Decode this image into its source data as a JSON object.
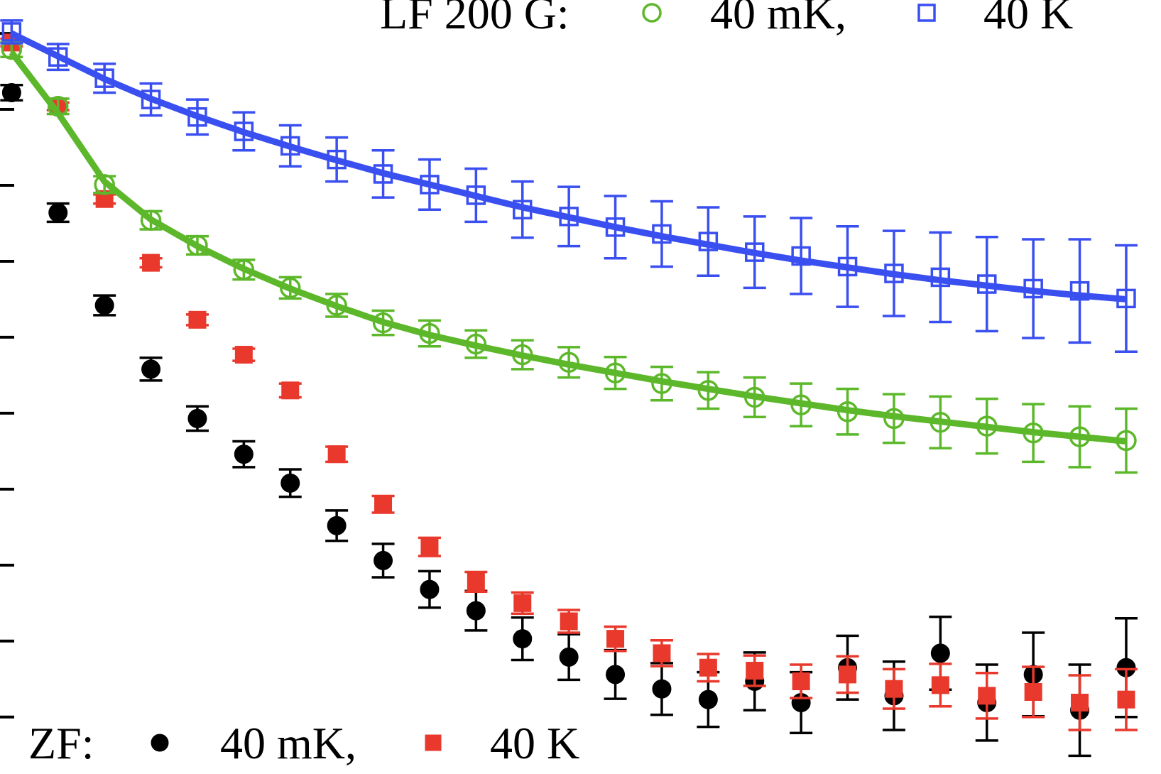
{
  "chart_data": {
    "type": "scatter",
    "xlim": [
      0,
      100
    ],
    "ylim": [
      -0.75,
      9.44
    ],
    "yticks": [
      0,
      1,
      2,
      3,
      4,
      5,
      6,
      7,
      8,
      9
    ],
    "x": [
      1,
      5,
      9,
      13,
      17,
      21,
      25,
      29,
      33,
      37,
      41,
      45,
      49,
      53,
      57,
      61,
      65,
      69,
      73,
      77,
      81,
      85,
      89,
      93,
      97
    ],
    "legend_groups": [
      {
        "label": "LF 200 G:",
        "series": [
          2,
          3
        ],
        "position": "top"
      },
      {
        "label": "ZF:",
        "series": [
          0,
          1
        ],
        "position": "bottom"
      }
    ],
    "series": [
      {
        "name": "40 mK,",
        "color": "#000000",
        "marker": "circle",
        "filled": true,
        "values": [
          8.22,
          6.64,
          5.42,
          4.58,
          3.93,
          3.46,
          3.08,
          2.52,
          2.06,
          1.68,
          1.4,
          1.03,
          0.79,
          0.56,
          0.37,
          0.23,
          0.47,
          0.19,
          0.65,
          0.28,
          0.84,
          0.19,
          0.56,
          0.09,
          0.65
        ],
        "errors": [
          0.1,
          0.12,
          0.13,
          0.15,
          0.16,
          0.17,
          0.18,
          0.2,
          0.22,
          0.24,
          0.26,
          0.28,
          0.3,
          0.32,
          0.34,
          0.36,
          0.38,
          0.4,
          0.42,
          0.45,
          0.48,
          0.5,
          0.55,
          0.6,
          0.65
        ]
      },
      {
        "name": "40 K",
        "color": "#e8392c",
        "marker": "square",
        "filled": true,
        "values": [
          8.88,
          8.04,
          6.82,
          5.98,
          5.23,
          4.77,
          4.3,
          3.46,
          2.8,
          2.24,
          1.78,
          1.5,
          1.26,
          1.03,
          0.84,
          0.65,
          0.61,
          0.47,
          0.56,
          0.37,
          0.42,
          0.28,
          0.33,
          0.19,
          0.23
        ],
        "errors": [
          0.05,
          0.05,
          0.06,
          0.06,
          0.07,
          0.08,
          0.09,
          0.1,
          0.11,
          0.12,
          0.13,
          0.14,
          0.15,
          0.16,
          0.17,
          0.18,
          0.2,
          0.22,
          0.24,
          0.26,
          0.28,
          0.3,
          0.33,
          0.36,
          0.4
        ]
      },
      {
        "name": "40 mK,",
        "color": "#5cb82a",
        "marker": "circle",
        "filled": false,
        "values": [
          8.79,
          8.04,
          7.01,
          6.54,
          6.21,
          5.89,
          5.65,
          5.42,
          5.19,
          5.05,
          4.91,
          4.77,
          4.67,
          4.53,
          4.39,
          4.3,
          4.21,
          4.11,
          4.02,
          3.93,
          3.88,
          3.83,
          3.74,
          3.69,
          3.64
        ],
        "errors": [
          0.1,
          0.1,
          0.11,
          0.12,
          0.12,
          0.13,
          0.14,
          0.15,
          0.16,
          0.17,
          0.18,
          0.19,
          0.2,
          0.21,
          0.22,
          0.24,
          0.26,
          0.28,
          0.3,
          0.32,
          0.34,
          0.36,
          0.38,
          0.4,
          0.42
        ],
        "fit": [
          8.75,
          7.95,
          7.05,
          6.55,
          6.2,
          5.9,
          5.64,
          5.41,
          5.2,
          5.03,
          4.89,
          4.76,
          4.64,
          4.53,
          4.42,
          4.32,
          4.22,
          4.13,
          4.04,
          3.96,
          3.89,
          3.82,
          3.75,
          3.69,
          3.63
        ]
      },
      {
        "name": "40 K",
        "color": "#3a4ff0",
        "marker": "square",
        "filled": false,
        "values": [
          9.02,
          8.69,
          8.41,
          8.13,
          7.9,
          7.71,
          7.52,
          7.34,
          7.15,
          7.01,
          6.87,
          6.68,
          6.59,
          6.45,
          6.36,
          6.26,
          6.12,
          6.07,
          5.93,
          5.84,
          5.79,
          5.7,
          5.64,
          5.61,
          5.51
        ],
        "errors": [
          0.15,
          0.17,
          0.19,
          0.21,
          0.23,
          0.25,
          0.27,
          0.29,
          0.31,
          0.33,
          0.35,
          0.37,
          0.39,
          0.41,
          0.43,
          0.45,
          0.47,
          0.5,
          0.53,
          0.56,
          0.59,
          0.62,
          0.65,
          0.68,
          0.7
        ],
        "fit": [
          9.0,
          8.7,
          8.4,
          8.14,
          7.91,
          7.7,
          7.51,
          7.33,
          7.16,
          7.01,
          6.86,
          6.71,
          6.58,
          6.45,
          6.33,
          6.22,
          6.11,
          6.01,
          5.92,
          5.83,
          5.75,
          5.68,
          5.61,
          5.55,
          5.5
        ]
      }
    ]
  }
}
